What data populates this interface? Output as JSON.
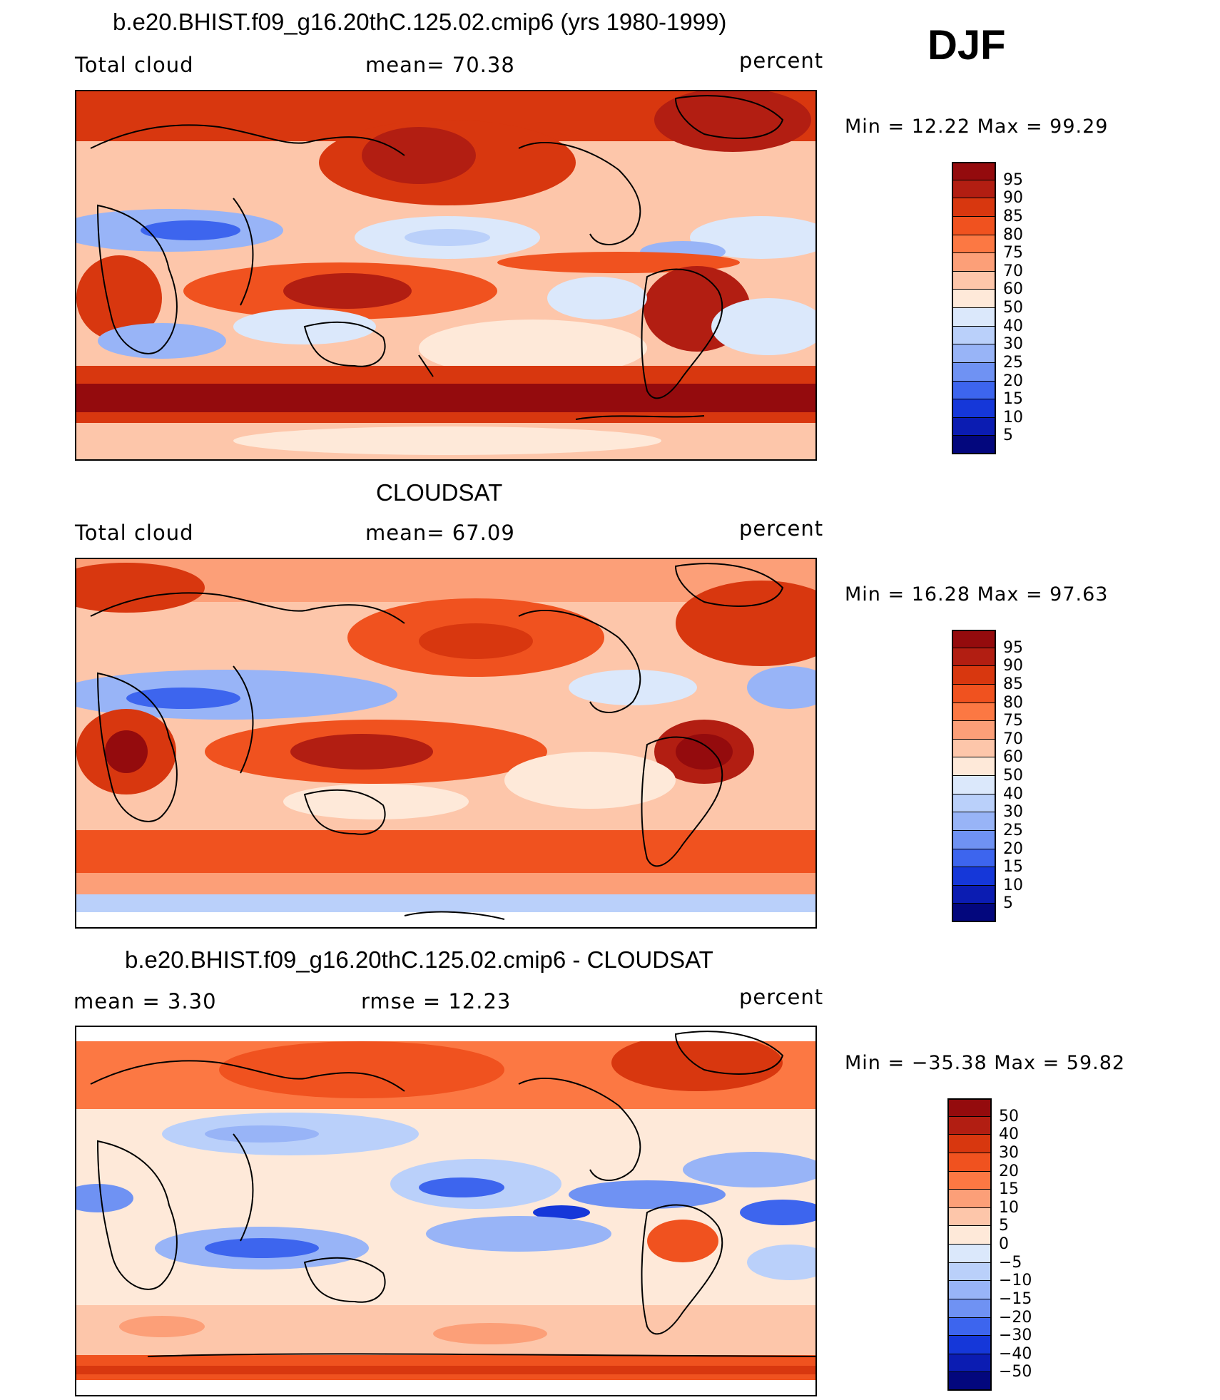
{
  "season": "DJF",
  "panels": [
    {
      "id": "model",
      "title": "b.e20.BHIST.f09_g16.20thC.125.02.cmip6 (yrs 1980-1999)",
      "left_label": "Total cloud",
      "center_label": "mean=   70.38",
      "units": "percent",
      "minmax": "Min  =   12.22  Max  =   99.29",
      "colorbar_labels": [
        "95",
        "90",
        "85",
        "80",
        "75",
        "70",
        "60",
        "50",
        "40",
        "30",
        "25",
        "20",
        "15",
        "10",
        "5"
      ]
    },
    {
      "id": "obs",
      "title": "CLOUDSAT",
      "left_label": "Total cloud",
      "center_label": "mean=   67.09",
      "units": "percent",
      "minmax": "Min  =   16.28  Max  =   97.63",
      "colorbar_labels": [
        "95",
        "90",
        "85",
        "80",
        "75",
        "70",
        "60",
        "50",
        "40",
        "30",
        "25",
        "20",
        "15",
        "10",
        "5"
      ]
    },
    {
      "id": "diff",
      "title": "b.e20.BHIST.f09_g16.20thC.125.02.cmip6 - CLOUDSAT",
      "left_label": "mean  =     3.30",
      "center_label": "rmse  =    12.23",
      "units": "percent",
      "minmax": "Min  = −35.38  Max  =    59.82",
      "colorbar_labels": [
        "50",
        "40",
        "30",
        "20",
        "15",
        "10",
        "5",
        "0",
        "−5",
        "−10",
        "−15",
        "−20",
        "−30",
        "−40",
        "−50"
      ]
    }
  ],
  "colors": {
    "abs_scale": [
      "#940b0d",
      "#b21e12",
      "#d8370f",
      "#f0521f",
      "#fc7843",
      "#fc9f78",
      "#fdc6aa",
      "#fee9d9",
      "#dbe8fb",
      "#bad0fa",
      "#98b4f7",
      "#6f92f3",
      "#3d65ee",
      "#1537d9",
      "#0b1cb2",
      "#03077d"
    ],
    "diff_scale": [
      "#940b0d",
      "#b21e12",
      "#d8370f",
      "#f0521f",
      "#fc7843",
      "#fc9f78",
      "#fdc6aa",
      "#fee9d9",
      "#dbe8fb",
      "#bad0fa",
      "#98b4f7",
      "#6f92f3",
      "#3d65ee",
      "#1537d9",
      "#0b1cb2",
      "#03077d"
    ]
  }
}
